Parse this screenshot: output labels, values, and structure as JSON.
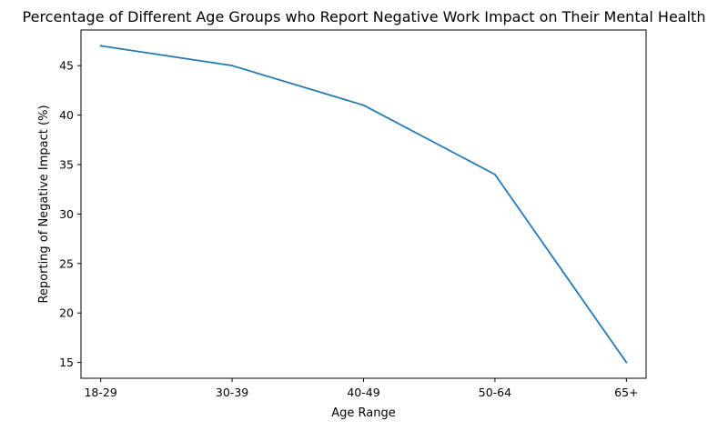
{
  "chart_data": {
    "type": "line",
    "title": "Percentage of Different Age Groups who Report Negative Work Impact on Their Mental Health",
    "xlabel": "Age Range",
    "ylabel": "Reporting of Negative Impact (%)",
    "categories": [
      "18-29",
      "30-39",
      "40-49",
      "50-64",
      "65+"
    ],
    "series": [
      {
        "values": [
          47,
          45,
          41,
          34,
          15
        ],
        "color": "#1f77b4"
      }
    ],
    "ylim": [
      13.4,
      48.6
    ],
    "yticks": [
      15,
      20,
      25,
      30,
      35,
      40,
      45
    ],
    "grid": false,
    "legend": "none"
  }
}
